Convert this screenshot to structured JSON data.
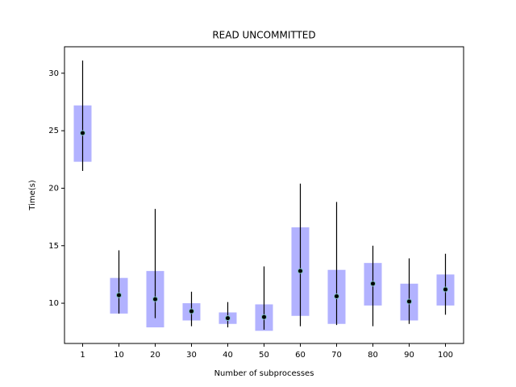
{
  "chart_data": {
    "type": "box",
    "title": "READ UNCOMMITTED",
    "x_label": "Number of subprocesses",
    "y_label": "Time(s)",
    "categories": [
      1,
      10,
      20,
      30,
      40,
      50,
      60,
      70,
      80,
      90,
      100
    ],
    "mean": [
      24.8,
      10.7,
      10.35,
      9.3,
      8.7,
      8.8,
      12.8,
      10.6,
      11.7,
      10.15,
      11.2
    ],
    "low": [
      21.5,
      9.1,
      8.7,
      8.0,
      7.9,
      7.7,
      8.0,
      8.1,
      8.0,
      8.2,
      9.0
    ],
    "high": [
      31.1,
      14.6,
      18.2,
      11.0,
      10.1,
      13.2,
      20.4,
      18.8,
      15.0,
      13.9,
      14.3
    ],
    "box_low": [
      22.3,
      9.1,
      7.9,
      8.5,
      8.2,
      7.6,
      8.9,
      8.2,
      9.8,
      8.5,
      9.8
    ],
    "box_high": [
      27.2,
      12.2,
      12.8,
      10.0,
      9.2,
      9.9,
      16.6,
      12.9,
      13.5,
      11.7,
      12.5
    ],
    "box_color": "#b2b2ff",
    "line_color": "#000000",
    "marker_edge_color": "#7fbfbf",
    "ylim": [
      6.5,
      32.3
    ],
    "yticks": [
      10,
      15,
      20,
      25,
      30
    ]
  }
}
